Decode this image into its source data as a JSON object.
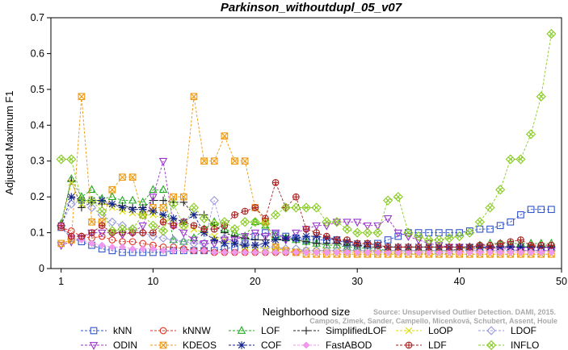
{
  "chart_data": {
    "type": "line",
    "title": "Parkinson_withoutdupl_05_v07",
    "xlabel": "Neighborhood size",
    "ylabel": "Adjusted Maximum F1",
    "xlim": [
      0,
      50
    ],
    "ylim": [
      0,
      0.7
    ],
    "xticks": [
      1,
      10,
      20,
      30,
      40,
      50
    ],
    "yticks": [
      0.0,
      0.1,
      0.2,
      0.3,
      0.4,
      0.5,
      0.6,
      0.7
    ],
    "legend_placement": "bottom",
    "grid": false,
    "watermark": [
      "Source: Unsupervised Outlier Detection. DAMI, 2015.",
      "Campos, Zimek, Sander, Campello, Micenková, Schubert, Assent, Houle"
    ],
    "x": [
      1,
      2,
      3,
      4,
      5,
      6,
      7,
      8,
      9,
      10,
      11,
      12,
      13,
      14,
      15,
      16,
      17,
      18,
      19,
      20,
      21,
      22,
      23,
      24,
      25,
      26,
      27,
      28,
      29,
      30,
      31,
      32,
      33,
      34,
      35,
      36,
      37,
      38,
      39,
      40,
      41,
      42,
      43,
      44,
      45,
      46,
      47,
      48,
      49
    ],
    "series": [
      {
        "name": "kNN",
        "color": "#3355cc",
        "marker": "square",
        "values": [
          0.115,
          0.085,
          0.075,
          0.065,
          0.055,
          0.05,
          0.045,
          0.045,
          0.045,
          0.045,
          0.045,
          0.05,
          0.05,
          0.05,
          0.05,
          0.05,
          0.055,
          0.06,
          0.07,
          0.09,
          0.1,
          0.095,
          0.09,
          0.085,
          0.08,
          0.08,
          0.08,
          0.08,
          0.07,
          0.065,
          0.065,
          0.07,
          0.08,
          0.09,
          0.1,
          0.1,
          0.1,
          0.1,
          0.1,
          0.1,
          0.105,
          0.11,
          0.11,
          0.12,
          0.13,
          0.15,
          0.165,
          0.165,
          0.165
        ]
      },
      {
        "name": "kNNW",
        "color": "#dd3322",
        "marker": "circle",
        "values": [
          0.115,
          0.105,
          0.09,
          0.085,
          0.09,
          0.08,
          0.075,
          0.075,
          0.07,
          0.065,
          0.06,
          0.06,
          0.055,
          0.05,
          0.05,
          0.045,
          0.045,
          0.045,
          0.045,
          0.045,
          0.045,
          0.045,
          0.045,
          0.045,
          0.05,
          0.05,
          0.05,
          0.05,
          0.05,
          0.05,
          0.05,
          0.05,
          0.05,
          0.05,
          0.05,
          0.05,
          0.05,
          0.05,
          0.05,
          0.055,
          0.055,
          0.055,
          0.055,
          0.06,
          0.06,
          0.06,
          0.06,
          0.065,
          0.065
        ]
      },
      {
        "name": "LOF",
        "color": "#22aa22",
        "marker": "triangle-up",
        "values": [
          0.125,
          0.25,
          0.2,
          0.22,
          0.195,
          0.2,
          0.19,
          0.19,
          0.185,
          0.22,
          0.22,
          0.08,
          0.075,
          0.085,
          0.11,
          0.13,
          0.11,
          0.1,
          0.09,
          0.13,
          0.12,
          0.09,
          0.085,
          0.08,
          0.075,
          0.07,
          0.065,
          0.065,
          0.06,
          0.06,
          0.055,
          0.055,
          0.05,
          0.05,
          0.05,
          0.05,
          0.05,
          0.05,
          0.05,
          0.055,
          0.06,
          0.065,
          0.07,
          0.07,
          0.07,
          0.07,
          0.07,
          0.07,
          0.07
        ]
      },
      {
        "name": "SimplifiedLOF",
        "color": "#222222",
        "marker": "plus",
        "values": [
          0.12,
          0.245,
          0.17,
          0.185,
          0.18,
          0.18,
          0.175,
          0.17,
          0.17,
          0.19,
          0.19,
          0.185,
          0.185,
          0.15,
          0.15,
          0.12,
          0.1,
          0.09,
          0.085,
          0.08,
          0.08,
          0.08,
          0.08,
          0.08,
          0.075,
          0.07,
          0.07,
          0.07,
          0.065,
          0.065,
          0.06,
          0.06,
          0.06,
          0.06,
          0.06,
          0.06,
          0.06,
          0.06,
          0.06,
          0.06,
          0.06,
          0.06,
          0.06,
          0.06,
          0.06,
          0.06,
          0.06,
          0.06,
          0.06
        ]
      },
      {
        "name": "LoOP",
        "color": "#dddd00",
        "marker": "x",
        "values": [
          0.12,
          0.24,
          0.18,
          0.19,
          0.185,
          0.17,
          0.16,
          0.155,
          0.15,
          0.15,
          0.14,
          0.13,
          0.12,
          0.11,
          0.1,
          0.09,
          0.08,
          0.07,
          0.06,
          0.06,
          0.055,
          0.055,
          0.05,
          0.05,
          0.05,
          0.05,
          0.05,
          0.05,
          0.045,
          0.045,
          0.045,
          0.045,
          0.045,
          0.045,
          0.04,
          0.04,
          0.04,
          0.04,
          0.04,
          0.04,
          0.04,
          0.04,
          0.04,
          0.04,
          0.04,
          0.04,
          0.04,
          0.04,
          0.04
        ]
      },
      {
        "name": "LDOF",
        "color": "#9999dd",
        "marker": "diamond",
        "values": [
          0.12,
          0.18,
          0.19,
          0.17,
          0.15,
          0.13,
          0.12,
          0.11,
          0.1,
          0.09,
          0.085,
          0.08,
          0.075,
          0.07,
          0.07,
          0.19,
          0.085,
          0.075,
          0.07,
          0.065,
          0.06,
          0.06,
          0.055,
          0.055,
          0.05,
          0.05,
          0.05,
          0.05,
          0.05,
          0.05,
          0.05,
          0.05,
          0.05,
          0.05,
          0.05,
          0.05,
          0.05,
          0.05,
          0.05,
          0.05,
          0.05,
          0.05,
          0.05,
          0.05,
          0.05,
          0.05,
          0.05,
          0.05,
          0.05
        ]
      },
      {
        "name": "ODIN",
        "color": "#9933cc",
        "marker": "triangle-down",
        "values": [
          0.065,
          0.075,
          0.085,
          0.1,
          0.1,
          0.1,
          0.095,
          0.1,
          0.12,
          0.2,
          0.3,
          0.12,
          0.1,
          0.08,
          0.07,
          0.07,
          0.08,
          0.08,
          0.09,
          0.1,
          0.09,
          0.1,
          0.08,
          0.1,
          0.11,
          0.12,
          0.12,
          0.13,
          0.13,
          0.13,
          0.12,
          0.12,
          0.14,
          0.1,
          0.09,
          0.08,
          0.07,
          0.065,
          0.06,
          0.06,
          0.06,
          0.06,
          0.055,
          0.055,
          0.055,
          0.05,
          0.05,
          0.05,
          0.05
        ]
      },
      {
        "name": "KDEOS",
        "color": "#ee9911",
        "marker": "square-x",
        "values": [
          0.07,
          0.08,
          0.48,
          0.13,
          0.13,
          0.22,
          0.255,
          0.255,
          0.15,
          0.17,
          0.17,
          0.2,
          0.2,
          0.48,
          0.3,
          0.3,
          0.37,
          0.3,
          0.3,
          0.17,
          0.13,
          0.06,
          0.05,
          0.045,
          0.04,
          0.04,
          0.04,
          0.04,
          0.04,
          0.04,
          0.04,
          0.04,
          0.04,
          0.04,
          0.04,
          0.04,
          0.04,
          0.04,
          0.04,
          0.04,
          0.04,
          0.04,
          0.04,
          0.04,
          0.04,
          0.04,
          0.04,
          0.04,
          0.04
        ]
      },
      {
        "name": "COF",
        "color": "#112288",
        "marker": "asterisk",
        "values": [
          0.12,
          0.2,
          0.19,
          0.19,
          0.19,
          0.18,
          0.17,
          0.165,
          0.165,
          0.16,
          0.15,
          0.14,
          0.13,
          0.15,
          0.1,
          0.08,
          0.07,
          0.07,
          0.065,
          0.065,
          0.07,
          0.08,
          0.085,
          0.085,
          0.09,
          0.09,
          0.085,
          0.08,
          0.075,
          0.07,
          0.07,
          0.065,
          0.06,
          0.06,
          0.06,
          0.06,
          0.06,
          0.06,
          0.06,
          0.06,
          0.06,
          0.06,
          0.06,
          0.06,
          0.06,
          0.06,
          0.06,
          0.06,
          0.06
        ]
      },
      {
        "name": "FastABOD",
        "color": "#ee99ee",
        "marker": "diamond-filled",
        "values": [
          0.12,
          0.09,
          0.08,
          0.07,
          0.065,
          0.06,
          0.06,
          0.055,
          0.055,
          0.055,
          0.05,
          0.05,
          0.05,
          0.05,
          0.05,
          0.045,
          0.045,
          0.045,
          0.045,
          0.045,
          0.045,
          0.045,
          0.045,
          0.045,
          0.045,
          0.045,
          0.045,
          0.045,
          0.045,
          0.045,
          0.045,
          0.045,
          0.045,
          0.045,
          0.045,
          0.045,
          0.045,
          0.045,
          0.045,
          0.045,
          0.045,
          0.045,
          0.045,
          0.045,
          0.045,
          0.045,
          0.045,
          0.045,
          0.045
        ]
      },
      {
        "name": "LDF",
        "color": "#aa2222",
        "marker": "circle-plus",
        "values": [
          0.12,
          0.09,
          0.09,
          0.1,
          0.12,
          0.1,
          0.1,
          0.1,
          0.1,
          0.1,
          0.13,
          0.12,
          0.13,
          0.12,
          0.11,
          0.11,
          0.12,
          0.15,
          0.16,
          0.17,
          0.14,
          0.24,
          0.17,
          0.2,
          0.11,
          0.1,
          0.09,
          0.08,
          0.08,
          0.07,
          0.07,
          0.065,
          0.06,
          0.06,
          0.06,
          0.06,
          0.06,
          0.06,
          0.06,
          0.06,
          0.06,
          0.065,
          0.065,
          0.07,
          0.075,
          0.08,
          0.065,
          0.065,
          0.065
        ]
      },
      {
        "name": "INFLO",
        "color": "#88cc22",
        "marker": "hash",
        "values": [
          0.305,
          0.305,
          0.19,
          0.19,
          0.16,
          0.105,
          0.11,
          0.11,
          0.15,
          0.12,
          0.105,
          0.18,
          0.12,
          0.17,
          0.14,
          0.125,
          0.13,
          0.11,
          0.13,
          0.13,
          0.125,
          0.15,
          0.17,
          0.17,
          0.17,
          0.17,
          0.13,
          0.13,
          0.11,
          0.1,
          0.1,
          0.1,
          0.19,
          0.2,
          0.1,
          0.09,
          0.08,
          0.08,
          0.085,
          0.09,
          0.1,
          0.13,
          0.17,
          0.22,
          0.305,
          0.305,
          0.375,
          0.48,
          0.655
        ]
      }
    ]
  }
}
